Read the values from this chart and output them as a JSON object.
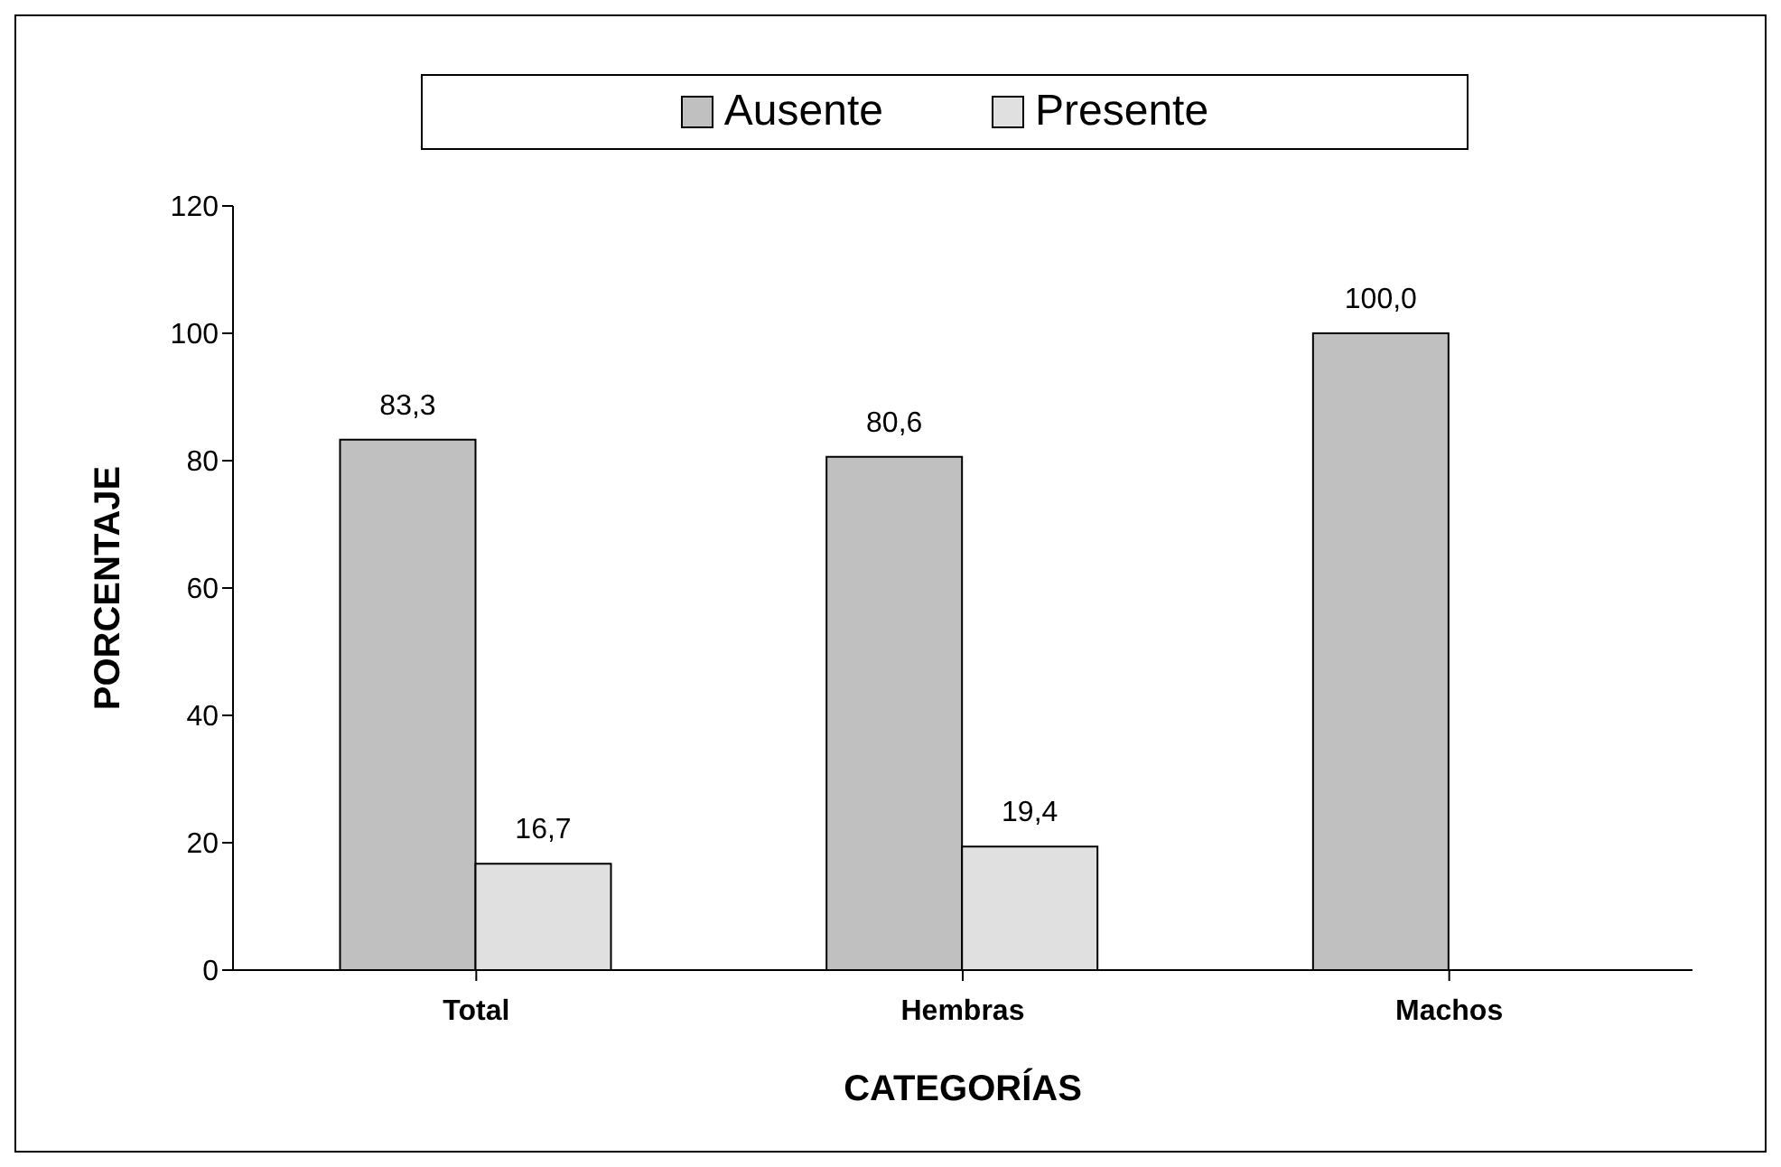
{
  "chart_data": {
    "type": "bar",
    "xlabel": "CATEGORÍAS",
    "ylabel": "PORCENTAJE",
    "categories": [
      "Total",
      "Hembras",
      "Machos"
    ],
    "series": [
      {
        "name": "Ausente",
        "color": "#c0c0c0",
        "values": [
          83.3,
          80.6,
          100.0
        ],
        "value_labels": [
          "83,3",
          "80,6",
          "100,0"
        ]
      },
      {
        "name": "Presente",
        "color": "#e0e0e0",
        "values": [
          16.7,
          19.4,
          null
        ],
        "value_labels": [
          "16,7",
          "19,4",
          null
        ]
      }
    ],
    "ylim": [
      0,
      120
    ],
    "yticks": [
      0,
      20,
      40,
      60,
      80,
      100,
      120
    ],
    "grid": false,
    "legend": "top"
  }
}
